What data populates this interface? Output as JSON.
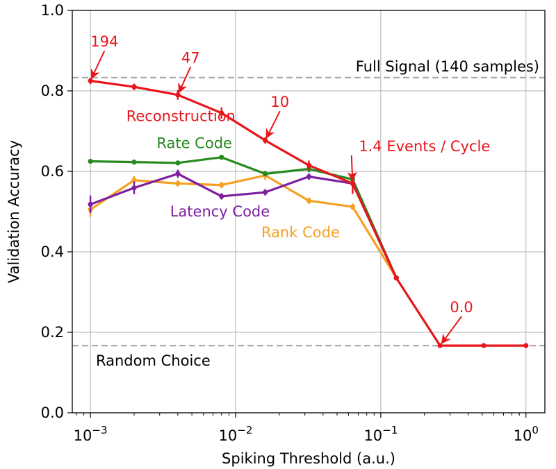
{
  "chart_data": {
    "type": "line",
    "xscale": "log",
    "xlabel": "Spiking Threshold (a.u.)",
    "ylabel": "Validation Accuracy",
    "xlim": [
      0.00075,
      1.35
    ],
    "ylim": [
      0.0,
      1.0
    ],
    "grid": true,
    "x_ticks": [
      {
        "value": 0.001,
        "base": "10",
        "exp": "−3"
      },
      {
        "value": 0.01,
        "base": "10",
        "exp": "−2"
      },
      {
        "value": 0.1,
        "base": "10",
        "exp": "−1"
      },
      {
        "value": 1,
        "base": "10",
        "exp": "0"
      }
    ],
    "y_ticks": [
      {
        "value": 0.0,
        "label": "0.0"
      },
      {
        "value": 0.2,
        "label": "0.2"
      },
      {
        "value": 0.4,
        "label": "0.4"
      },
      {
        "value": 0.6,
        "label": "0.6"
      },
      {
        "value": 0.8,
        "label": "0.8"
      },
      {
        "value": 1.0,
        "label": "1.0"
      }
    ],
    "reference_lines": [
      {
        "label": "Full Signal (140 samples)",
        "y": 0.833,
        "color": "#aaaaaa"
      },
      {
        "label": "Random Choice",
        "y": 0.167,
        "color": "#aaaaaa"
      }
    ],
    "series": [
      {
        "name": "Rank Code",
        "color": "#f5a020",
        "x": [
          0.001,
          0.002,
          0.004,
          0.008,
          0.016,
          0.032,
          0.064,
          0.128
        ],
        "y": [
          0.505,
          0.578,
          0.57,
          0.566,
          0.59,
          0.527,
          0.512,
          0.335
        ],
        "err": [
          0.018,
          0.01,
          0.008,
          0.008,
          0.012,
          0.008,
          0.008,
          0.004
        ]
      },
      {
        "name": "Rate Code",
        "color": "#268a1e",
        "x": [
          0.001,
          0.002,
          0.004,
          0.008,
          0.016,
          0.032,
          0.064,
          0.128
        ],
        "y": [
          0.625,
          0.623,
          0.621,
          0.635,
          0.594,
          0.606,
          0.58,
          0.335
        ],
        "err": [
          0.006,
          0.006,
          0.006,
          0.006,
          0.006,
          0.008,
          0.008,
          0.004
        ]
      },
      {
        "name": "Latency Code",
        "color": "#7d1fa0",
        "x": [
          0.001,
          0.002,
          0.004,
          0.008,
          0.016,
          0.032,
          0.064,
          0.128
        ],
        "y": [
          0.518,
          0.559,
          0.594,
          0.538,
          0.548,
          0.587,
          0.57,
          0.335
        ],
        "err": [
          0.022,
          0.016,
          0.01,
          0.008,
          0.008,
          0.008,
          0.012,
          0.004
        ]
      },
      {
        "name": "Reconstruction",
        "color": "#e8151b",
        "x": [
          0.001,
          0.002,
          0.004,
          0.008,
          0.016,
          0.032,
          0.064,
          0.128,
          0.256,
          0.512,
          1.0
        ],
        "y": [
          0.825,
          0.81,
          0.79,
          0.745,
          0.677,
          0.615,
          0.57,
          0.335,
          0.167,
          0.167,
          0.167
        ],
        "err": [
          0.008,
          0.008,
          0.012,
          0.014,
          0.008,
          0.012,
          0.026,
          0.004,
          0.002,
          0.002,
          0.002
        ]
      }
    ],
    "series_labels": [
      {
        "series": "Reconstruction",
        "text": "Reconstruction",
        "x": 0.0042,
        "y": 0.725
      },
      {
        "series": "Rate Code",
        "text": "Rate Code",
        "x": 0.0052,
        "y": 0.658
      },
      {
        "series": "Latency Code",
        "text": "Latency Code",
        "x": 0.0078,
        "y": 0.488
      },
      {
        "series": "Rank Code",
        "text": "Rank Code",
        "x": 0.028,
        "y": 0.436
      }
    ],
    "annotations": [
      {
        "text": "194",
        "point_x": 0.001,
        "point_y": 0.825,
        "text_x": 0.00125,
        "text_y": 0.91
      },
      {
        "text": "47",
        "point_x": 0.004,
        "point_y": 0.79,
        "text_x": 0.0049,
        "text_y": 0.87
      },
      {
        "text": "10",
        "point_x": 0.016,
        "point_y": 0.677,
        "text_x": 0.0202,
        "text_y": 0.76
      },
      {
        "text": "1.4 Events / Cycle",
        "point_x": 0.064,
        "point_y": 0.57,
        "text_x": 0.2,
        "text_y": 0.65
      },
      {
        "text": "0.0",
        "point_x": 0.256,
        "point_y": 0.167,
        "text_x": 0.36,
        "text_y": 0.25
      }
    ],
    "annotation_color": "#e8151b"
  }
}
